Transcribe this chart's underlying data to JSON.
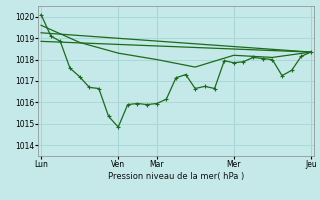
{
  "background_color": "#c5e8e8",
  "grid_color": "#a8d8d8",
  "line_color": "#1a6b1a",
  "x_tick_positions": [
    0.0,
    0.286,
    0.429,
    0.714,
    1.0
  ],
  "x_tick_labels": [
    "Lun",
    "Ven",
    "Mar",
    "Mer",
    "Jeu"
  ],
  "xlabel": "Pression niveau de la mer( hPa )",
  "ylim": [
    1013.5,
    1020.5
  ],
  "yticks": [
    1014,
    1015,
    1016,
    1017,
    1018,
    1019,
    1020
  ],
  "line1_x": [
    0.0,
    0.036,
    0.071,
    0.107,
    0.143,
    0.179,
    0.214,
    0.25,
    0.286,
    0.321,
    0.357,
    0.393,
    0.429,
    0.464,
    0.5,
    0.536,
    0.571,
    0.607,
    0.643,
    0.679,
    0.714,
    0.75,
    0.786,
    0.821,
    0.857,
    0.893,
    0.929,
    0.964,
    1.0
  ],
  "line1_y": [
    1020.1,
    1019.1,
    1018.85,
    1017.6,
    1017.2,
    1016.7,
    1016.65,
    1015.35,
    1014.85,
    1015.9,
    1015.95,
    1015.9,
    1015.95,
    1016.15,
    1017.15,
    1017.3,
    1016.65,
    1016.75,
    1016.65,
    1017.95,
    1017.85,
    1017.9,
    1018.1,
    1018.05,
    1018.0,
    1017.25,
    1017.5,
    1018.15,
    1018.35
  ],
  "line2_x": [
    0.0,
    0.143,
    0.286,
    0.429,
    0.571,
    0.714,
    0.857,
    1.0
  ],
  "line2_y": [
    1019.6,
    1018.8,
    1018.3,
    1018.0,
    1017.65,
    1018.2,
    1018.1,
    1018.35
  ],
  "line3_x": [
    0.0,
    1.0
  ],
  "line3_y": [
    1019.25,
    1018.35
  ],
  "line4_x": [
    0.0,
    1.0
  ],
  "line4_y": [
    1018.85,
    1018.35
  ]
}
